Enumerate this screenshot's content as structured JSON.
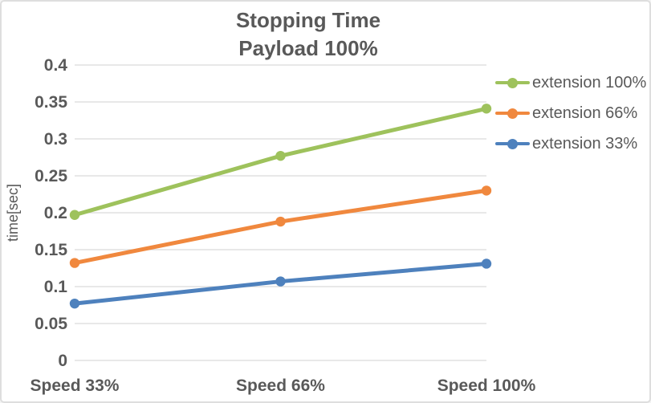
{
  "chart_data": {
    "type": "line",
    "title": "Stopping Time",
    "subtitle": "Payload 100%",
    "xlabel": "",
    "ylabel": "time[sec]",
    "categories": [
      "Speed 33%",
      "Speed 66%",
      "Speed 100%"
    ],
    "series": [
      {
        "name": "extension 100%",
        "color": "#9EC25C",
        "values": [
          0.197,
          0.277,
          0.341
        ]
      },
      {
        "name": "extension 66%",
        "color": "#F0883E",
        "values": [
          0.132,
          0.188,
          0.23
        ]
      },
      {
        "name": "extension 33%",
        "color": "#4E81BD",
        "values": [
          0.077,
          0.107,
          0.131
        ]
      }
    ],
    "ylim": [
      0,
      0.4
    ],
    "y_ticks": [
      "0",
      "0.05",
      "0.1",
      "0.15",
      "0.2",
      "0.25",
      "0.3",
      "0.35",
      "0.4"
    ],
    "grid": true,
    "legend_position": "right",
    "colors": {
      "text": "#595959",
      "gridline": "#D9D9D9",
      "border": "#DEDEDE",
      "background": "#FFFFFF"
    }
  }
}
